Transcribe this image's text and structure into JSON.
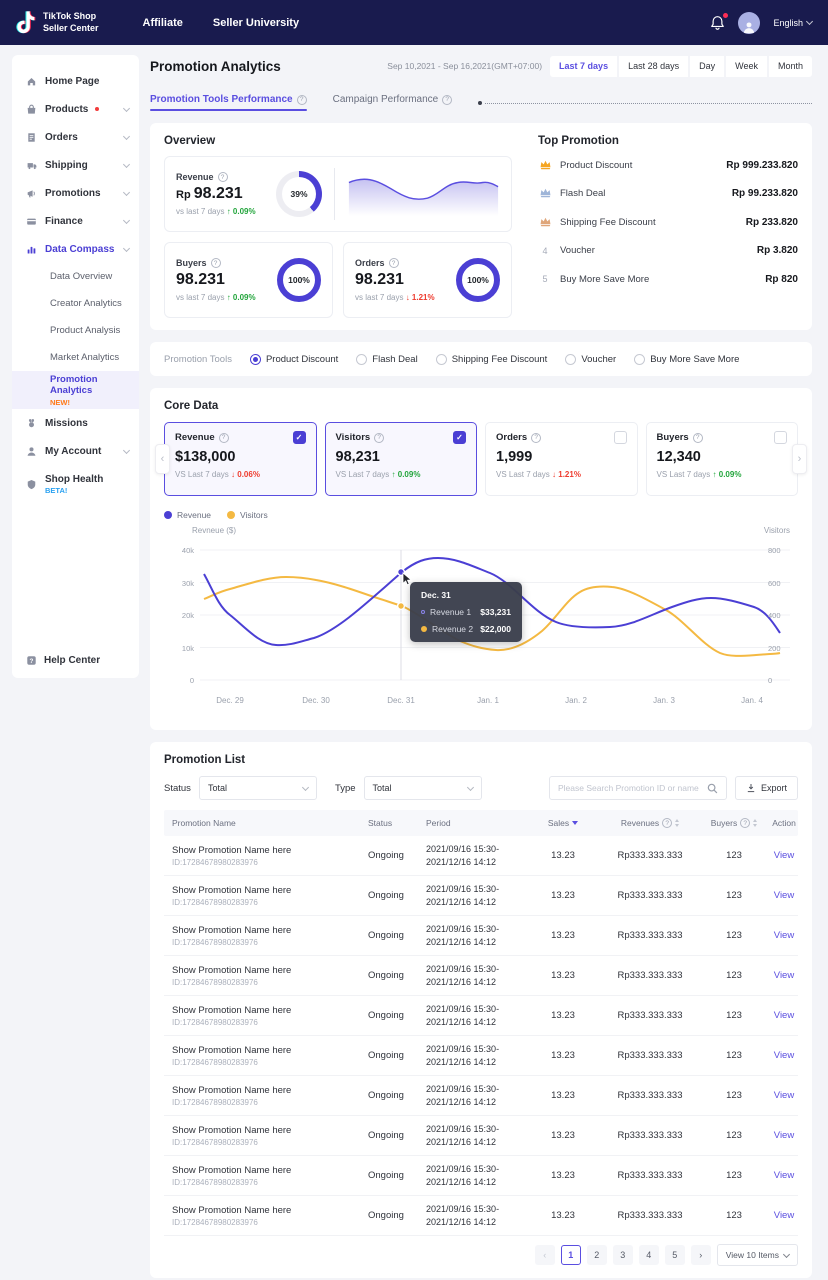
{
  "colors": {
    "accent": "#4b3fd4",
    "accent_light": "#5a4ee0",
    "yellow": "#f4b942",
    "green": "#23a53c",
    "red": "#ee3b2e",
    "header_navy": "#191b4e",
    "new_badge": "#ff7a1a",
    "beta_badge": "#2aa1f0"
  },
  "header": {
    "brand_top": "TikTok Shop",
    "brand_bottom": "Seller Center",
    "nav": [
      {
        "label": "Affiliate"
      },
      {
        "label": "Seller University"
      }
    ],
    "language": "English"
  },
  "sidebar": {
    "items": [
      {
        "icon": "home-icon",
        "label": "Home Page"
      },
      {
        "icon": "products-icon",
        "label": "Products",
        "dot": true,
        "chevron": true
      },
      {
        "icon": "orders-icon",
        "label": "Orders",
        "chevron": true
      },
      {
        "icon": "shipping-icon",
        "label": "Shipping",
        "chevron": true
      },
      {
        "icon": "promotions-icon",
        "label": "Promotions",
        "chevron": true
      },
      {
        "icon": "finance-icon",
        "label": "Finance",
        "chevron": true
      },
      {
        "icon": "data-compass-icon",
        "label": "Data Compass",
        "chevron": true,
        "active": true
      }
    ],
    "subitems": [
      {
        "label": "Data Overview"
      },
      {
        "label": "Creator Analytics"
      },
      {
        "label": "Product Analysis"
      },
      {
        "label": "Market Analytics"
      },
      {
        "label": "Promotion Analytics",
        "badge": "NEW!",
        "active": true
      }
    ],
    "items_bottom": [
      {
        "icon": "missions-icon",
        "label": "Missions"
      },
      {
        "icon": "account-icon",
        "label": "My Account",
        "chevron": true
      },
      {
        "icon": "shop-health-icon",
        "label": "Shop Health",
        "badge": "BETA!"
      }
    ],
    "help": {
      "icon": "help-icon",
      "label": "Help Center"
    }
  },
  "page": {
    "title": "Promotion Analytics",
    "date_range": "Sep 10,2021 - Sep 16,2021(GMT+07:00)",
    "range_buttons": [
      {
        "label": "Last 7 days",
        "active": true
      },
      {
        "label": "Last 28 days"
      },
      {
        "label": "Day"
      },
      {
        "label": "Week"
      },
      {
        "label": "Month"
      }
    ],
    "tabs": [
      {
        "label": "Promotion Tools Performance",
        "help": true,
        "active": true
      },
      {
        "label": "Campaign Performance",
        "help": true
      }
    ]
  },
  "overview": {
    "title": "Overview",
    "cards": [
      {
        "label": "Revenue",
        "help": true,
        "prefix": "Rp",
        "value": "98.231",
        "compare": "vs last 7 days",
        "delta": "0.09%",
        "direction": "up",
        "donut_label": "39%",
        "donut_pct": 39,
        "sparkline": true
      },
      {
        "label": "Buyers",
        "help": true,
        "prefix": "",
        "value": "98.231",
        "compare": "vs last 7 days",
        "delta": "0.09%",
        "direction": "up",
        "donut_label": "100%",
        "donut_pct": 100
      },
      {
        "label": "Orders",
        "help": true,
        "prefix": "",
        "value": "98.231",
        "compare": "vs last 7 days",
        "delta": "1.21%",
        "direction": "down",
        "donut_label": "100%",
        "donut_pct": 100
      }
    ]
  },
  "top_promotion": {
    "title": "Top Promotion",
    "rows": [
      {
        "rank": 1,
        "icon": "crown-gold-icon",
        "label": "Product Discount",
        "value": "Rp 999.233.820"
      },
      {
        "rank": 2,
        "icon": "crown-silver-icon",
        "label": "Flash Deal",
        "value": "Rp 99.233.820"
      },
      {
        "rank": 3,
        "icon": "crown-bronze-icon",
        "label": "Shipping Fee Discount",
        "value": "Rp 233.820"
      },
      {
        "rank": 4,
        "icon": null,
        "label": "Voucher",
        "value": "Rp 3.820"
      },
      {
        "rank": 5,
        "icon": null,
        "label": "Buy More Save More",
        "value": "Rp 820"
      }
    ]
  },
  "promotion_tools": {
    "label": "Promotion Tools",
    "options": [
      {
        "label": "Product Discount",
        "selected": true
      },
      {
        "label": "Flash Deal",
        "selected": false
      },
      {
        "label": "Shipping Fee Discount",
        "selected": false
      },
      {
        "label": "Voucher",
        "selected": false
      },
      {
        "label": "Buy More Save More",
        "selected": false
      }
    ]
  },
  "core_data": {
    "title": "Core Data",
    "cards": [
      {
        "label": "Revenue",
        "help": true,
        "value": "$138,000",
        "compare": "VS Last 7 days",
        "delta": "0.06%",
        "direction": "down",
        "checked": true
      },
      {
        "label": "Visitors",
        "help": true,
        "value": "98,231",
        "compare": "VS Last 7 days",
        "delta": "0.09%",
        "direction": "up",
        "checked": true
      },
      {
        "label": "Orders",
        "help": true,
        "value": "1,999",
        "compare": "VS Last 7 days",
        "delta": "1.21%",
        "direction": "down",
        "checked": false
      },
      {
        "label": "Buyers",
        "help": true,
        "value": "12,340",
        "compare": "VS Last 7 days",
        "delta": "0.09%",
        "direction": "up",
        "checked": false
      }
    ]
  },
  "chart_data": {
    "type": "line",
    "legend": [
      {
        "name": "Revenue",
        "color": "#4b3fd4"
      },
      {
        "name": "Visitors",
        "color": "#f4b942"
      }
    ],
    "x": [
      "Dec. 29",
      "Dec. 30",
      "Dec. 31",
      "Jan. 1",
      "Jan. 2",
      "Jan. 3",
      "Jan. 4"
    ],
    "series": [
      {
        "name": "Revenue",
        "axis": "left",
        "color": "#4b3fd4",
        "values": [
          20000,
          13000,
          33231,
          33000,
          17500,
          22000,
          22500
        ]
      },
      {
        "name": "Visitors",
        "axis": "right",
        "color": "#f4b942",
        "values": [
          560,
          625,
          455,
          195,
          520,
          430,
          160
        ]
      }
    ],
    "left_axis": {
      "label": "Revneue ($)",
      "ticks": [
        "40k",
        "30k",
        "20k",
        "10k",
        "0"
      ],
      "min": 0,
      "max": 40000
    },
    "right_axis": {
      "label": "Visitors",
      "ticks": [
        "800",
        "600",
        "400",
        "200",
        "0"
      ],
      "min": 0,
      "max": 800
    },
    "grid": true,
    "legend_position": "top-left",
    "highlight": {
      "x_label": "Dec. 31",
      "tooltip": {
        "title": "Dec. 31",
        "rows": [
          {
            "name": "Revenue 1",
            "value": "$33,231",
            "color": "#4b3fd4",
            "dot": "hollow"
          },
          {
            "name": "Revenue 2",
            "value": "$22,000",
            "color": "#f4b942",
            "dot": "solid"
          }
        ]
      }
    }
  },
  "promotion_list": {
    "title": "Promotion List",
    "filters": {
      "status_label": "Status",
      "status_value": "Total",
      "type_label": "Type",
      "type_value": "Total",
      "search_placeholder": "Please Search Promotion ID or name",
      "export_label": "Export"
    },
    "table": {
      "headers": [
        {
          "label": "Promotion Name"
        },
        {
          "label": "Status"
        },
        {
          "label": "Period"
        },
        {
          "label": "Sales",
          "sort": "desc"
        },
        {
          "label": "Revenues",
          "help": true,
          "sortable": true
        },
        {
          "label": "Buyers",
          "help": true,
          "sortable": true
        },
        {
          "label": "Action"
        }
      ],
      "rows": [
        {
          "name": "Show Promotion Name here",
          "id": "ID:17284678980283976",
          "status": "Ongoing",
          "period_start": "2021/09/16 15:30-",
          "period_end": "2021/12/16 14:12",
          "sales": "13.23",
          "revenues": "Rp333.333.333",
          "buyers": "123",
          "action": "View"
        },
        {
          "name": "Show Promotion Name here",
          "id": "ID:17284678980283976",
          "status": "Ongoing",
          "period_start": "2021/09/16 15:30-",
          "period_end": "2021/12/16 14:12",
          "sales": "13.23",
          "revenues": "Rp333.333.333",
          "buyers": "123",
          "action": "View"
        },
        {
          "name": "Show Promotion Name here",
          "id": "ID:17284678980283976",
          "status": "Ongoing",
          "period_start": "2021/09/16 15:30-",
          "period_end": "2021/12/16 14:12",
          "sales": "13.23",
          "revenues": "Rp333.333.333",
          "buyers": "123",
          "action": "View"
        },
        {
          "name": "Show Promotion Name here",
          "id": "ID:17284678980283976",
          "status": "Ongoing",
          "period_start": "2021/09/16 15:30-",
          "period_end": "2021/12/16 14:12",
          "sales": "13.23",
          "revenues": "Rp333.333.333",
          "buyers": "123",
          "action": "View"
        },
        {
          "name": "Show Promotion Name here",
          "id": "ID:17284678980283976",
          "status": "Ongoing",
          "period_start": "2021/09/16 15:30-",
          "period_end": "2021/12/16 14:12",
          "sales": "13.23",
          "revenues": "Rp333.333.333",
          "buyers": "123",
          "action": "View"
        },
        {
          "name": "Show Promotion Name here",
          "id": "ID:17284678980283976",
          "status": "Ongoing",
          "period_start": "2021/09/16 15:30-",
          "period_end": "2021/12/16 14:12",
          "sales": "13.23",
          "revenues": "Rp333.333.333",
          "buyers": "123",
          "action": "View"
        },
        {
          "name": "Show Promotion Name here",
          "id": "ID:17284678980283976",
          "status": "Ongoing",
          "period_start": "2021/09/16 15:30-",
          "period_end": "2021/12/16 14:12",
          "sales": "13.23",
          "revenues": "Rp333.333.333",
          "buyers": "123",
          "action": "View"
        },
        {
          "name": "Show Promotion Name here",
          "id": "ID:17284678980283976",
          "status": "Ongoing",
          "period_start": "2021/09/16 15:30-",
          "period_end": "2021/12/16 14:12",
          "sales": "13.23",
          "revenues": "Rp333.333.333",
          "buyers": "123",
          "action": "View"
        },
        {
          "name": "Show Promotion Name here",
          "id": "ID:17284678980283976",
          "status": "Ongoing",
          "period_start": "2021/09/16 15:30-",
          "period_end": "2021/12/16 14:12",
          "sales": "13.23",
          "revenues": "Rp333.333.333",
          "buyers": "123",
          "action": "View"
        },
        {
          "name": "Show Promotion Name here",
          "id": "ID:17284678980283976",
          "status": "Ongoing",
          "period_start": "2021/09/16 15:30-",
          "period_end": "2021/12/16 14:12",
          "sales": "13.23",
          "revenues": "Rp333.333.333",
          "buyers": "123",
          "action": "View"
        }
      ]
    },
    "pagination": {
      "prev": "‹",
      "pages": [
        "1",
        "2",
        "3",
        "4",
        "5"
      ],
      "active_page": "1",
      "next": "›",
      "view_label": "View 10 Items"
    }
  }
}
